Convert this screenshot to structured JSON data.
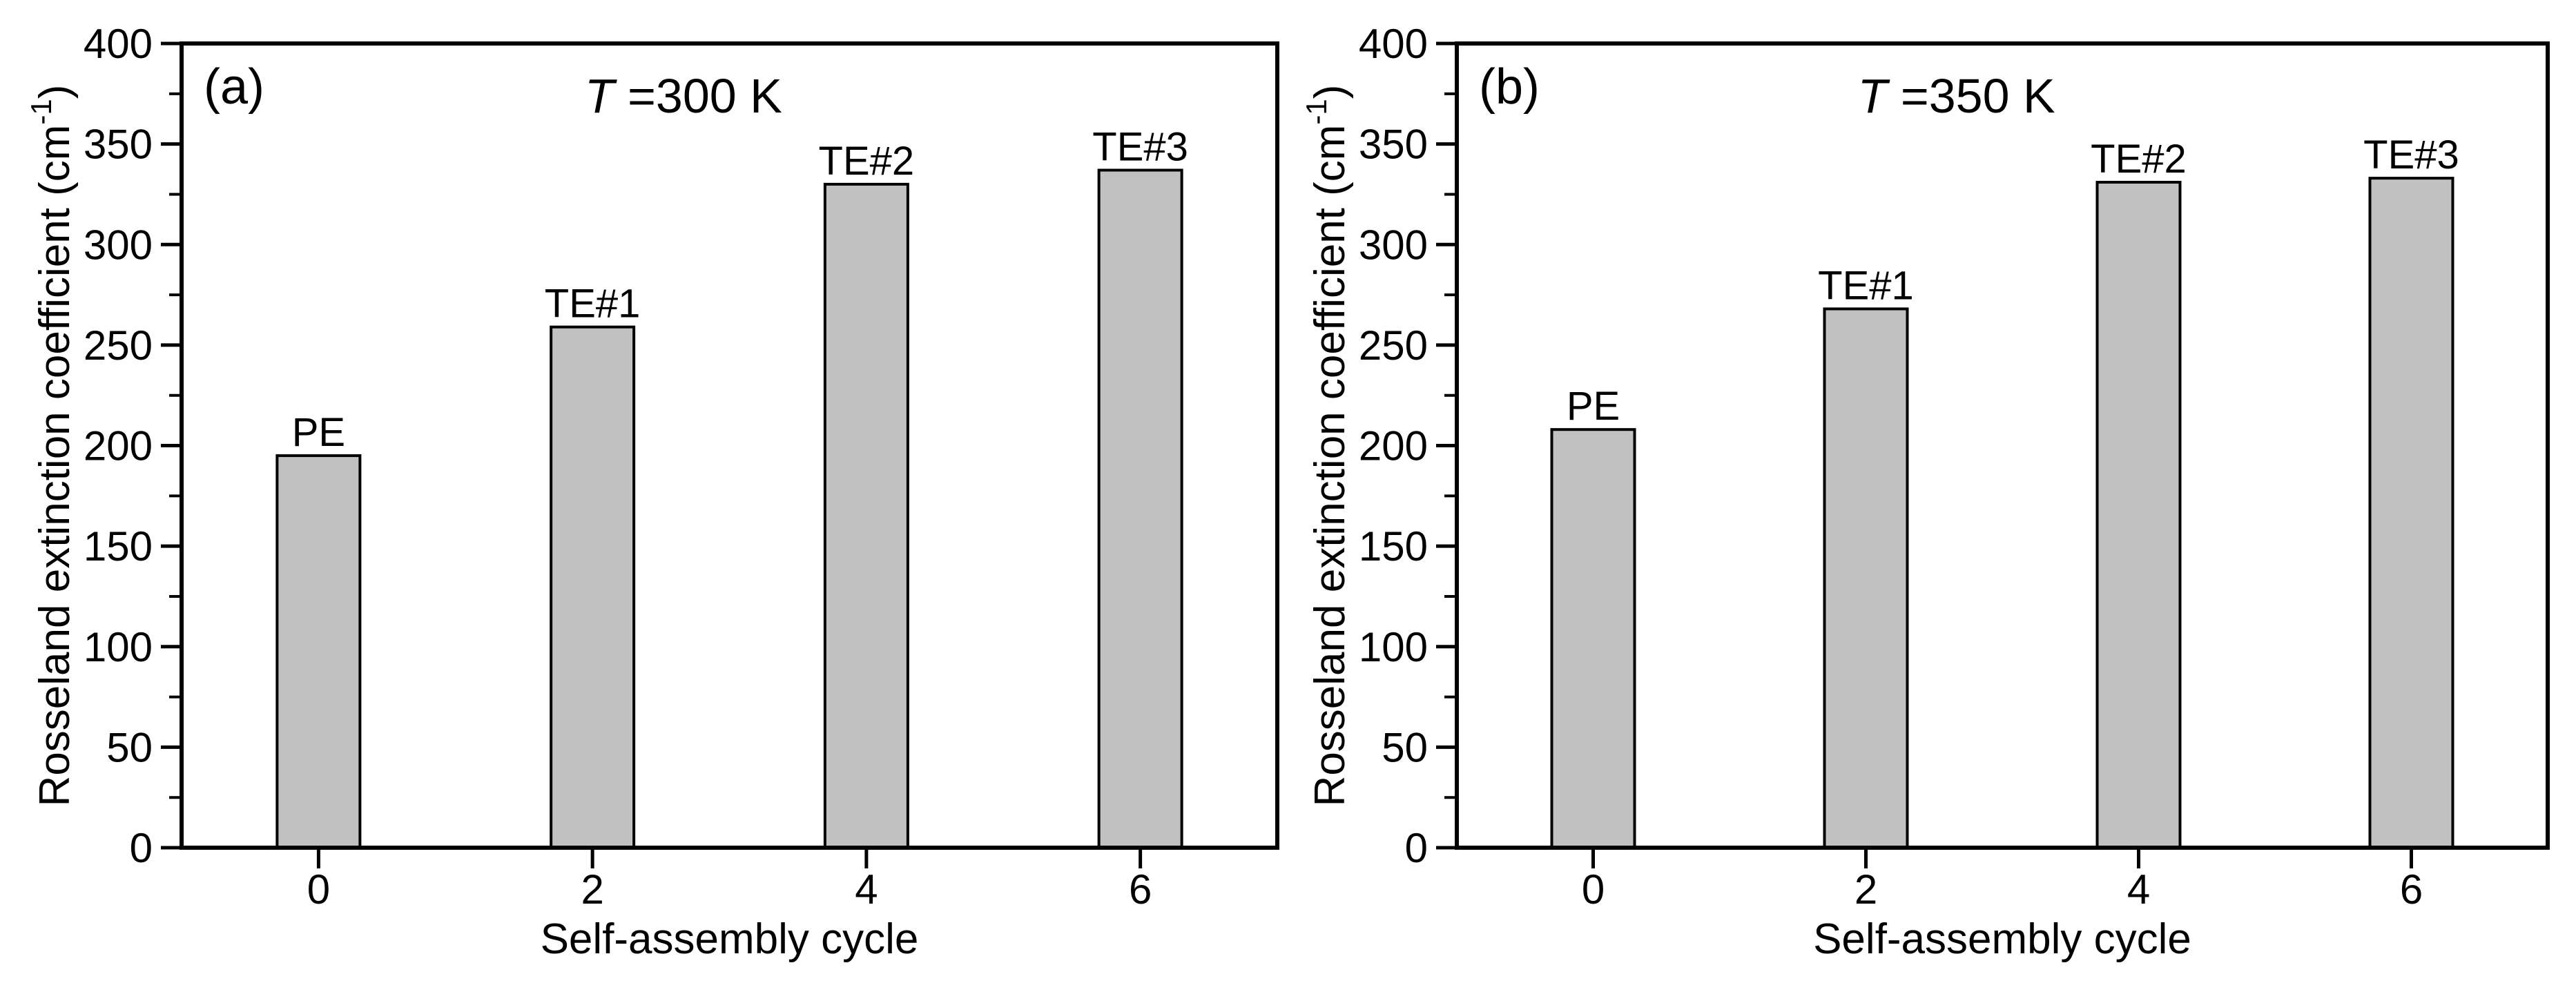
{
  "figure": {
    "background": "#ffffff",
    "colors": {
      "bar_fill": "#c1c1c1",
      "bar_border": "#000000",
      "axis": "#000000",
      "text": "#000000"
    },
    "xlabel": "Self-assembly cycle",
    "ylabel_main": "Rosseland extinction coefficient (cm",
    "ylabel_sup": "-1",
    "ylabel_close": ")"
  },
  "chart_data": [
    {
      "type": "bar",
      "panel_label": "(a)",
      "title_var": "T",
      "title_rest": " =300 K",
      "xlabel": "Self-assembly cycle",
      "ylabel": "Rosseland extinction coefficient (cm-1)",
      "categories": [
        0,
        2,
        4,
        6
      ],
      "bar_labels": [
        "PE",
        "TE#1",
        "TE#2",
        "TE#3"
      ],
      "values": [
        195,
        259,
        330,
        337
      ],
      "xticks": [
        0,
        2,
        4,
        6
      ],
      "xlim": [
        -1,
        7
      ],
      "ylim": [
        0,
        400
      ],
      "ytick_major_step": 50,
      "ytick_minor_step": 25,
      "yticks": [
        0,
        50,
        100,
        150,
        200,
        250,
        300,
        350,
        400
      ],
      "grid": false,
      "legend": null
    },
    {
      "type": "bar",
      "panel_label": "(b)",
      "title_var": "T",
      "title_rest": " =350 K",
      "xlabel": "Self-assembly cycle",
      "ylabel": "Rosseland extinction coefficient (cm-1)",
      "categories": [
        0,
        2,
        4,
        6
      ],
      "bar_labels": [
        "PE",
        "TE#1",
        "TE#2",
        "TE#3"
      ],
      "values": [
        208,
        268,
        331,
        333
      ],
      "xticks": [
        0,
        2,
        4,
        6
      ],
      "xlim": [
        -1,
        7
      ],
      "ylim": [
        0,
        400
      ],
      "ytick_major_step": 50,
      "ytick_minor_step": 25,
      "yticks": [
        0,
        50,
        100,
        150,
        200,
        250,
        300,
        350,
        400
      ],
      "grid": false,
      "legend": null
    }
  ]
}
